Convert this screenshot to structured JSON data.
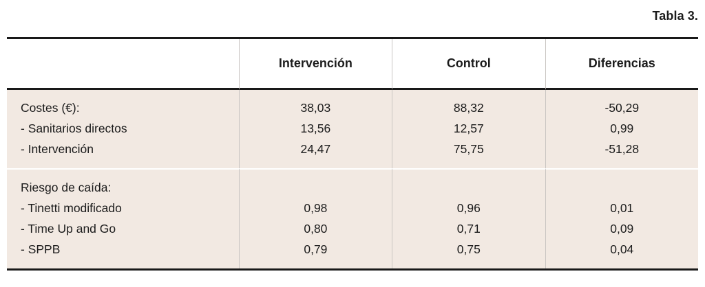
{
  "title": "Tabla 3.",
  "table": {
    "columns": [
      "",
      "Intervención",
      "Control",
      "Diferencias"
    ],
    "sections": [
      {
        "rows": [
          {
            "label": "Costes (€):",
            "intervencion": "38,03",
            "control": "88,32",
            "diferencias": "-50,29"
          },
          {
            "label": "- Sanitarios directos",
            "intervencion": "13,56",
            "control": "12,57",
            "diferencias": "0,99"
          },
          {
            "label": "- Intervención",
            "intervencion": "24,47",
            "control": "75,75",
            "diferencias": "-51,28"
          }
        ]
      },
      {
        "rows": [
          {
            "label": "Riesgo de caída:",
            "intervencion": "",
            "control": "",
            "diferencias": ""
          },
          {
            "label": "- Tinetti modificado",
            "intervencion": "0,98",
            "control": "0,96",
            "diferencias": "0,01"
          },
          {
            "label": "- Time Up and Go",
            "intervencion": "0,80",
            "control": "0,71",
            "diferencias": "0,09"
          },
          {
            "label": "- SPPB",
            "intervencion": "0,79",
            "control": "0,75",
            "diferencias": "0,04"
          }
        ]
      }
    ]
  },
  "colors": {
    "section_background": "#f2e9e2",
    "rule": "#191919",
    "grid_line": "#c9c5c2",
    "text": "#1c1c1c"
  }
}
